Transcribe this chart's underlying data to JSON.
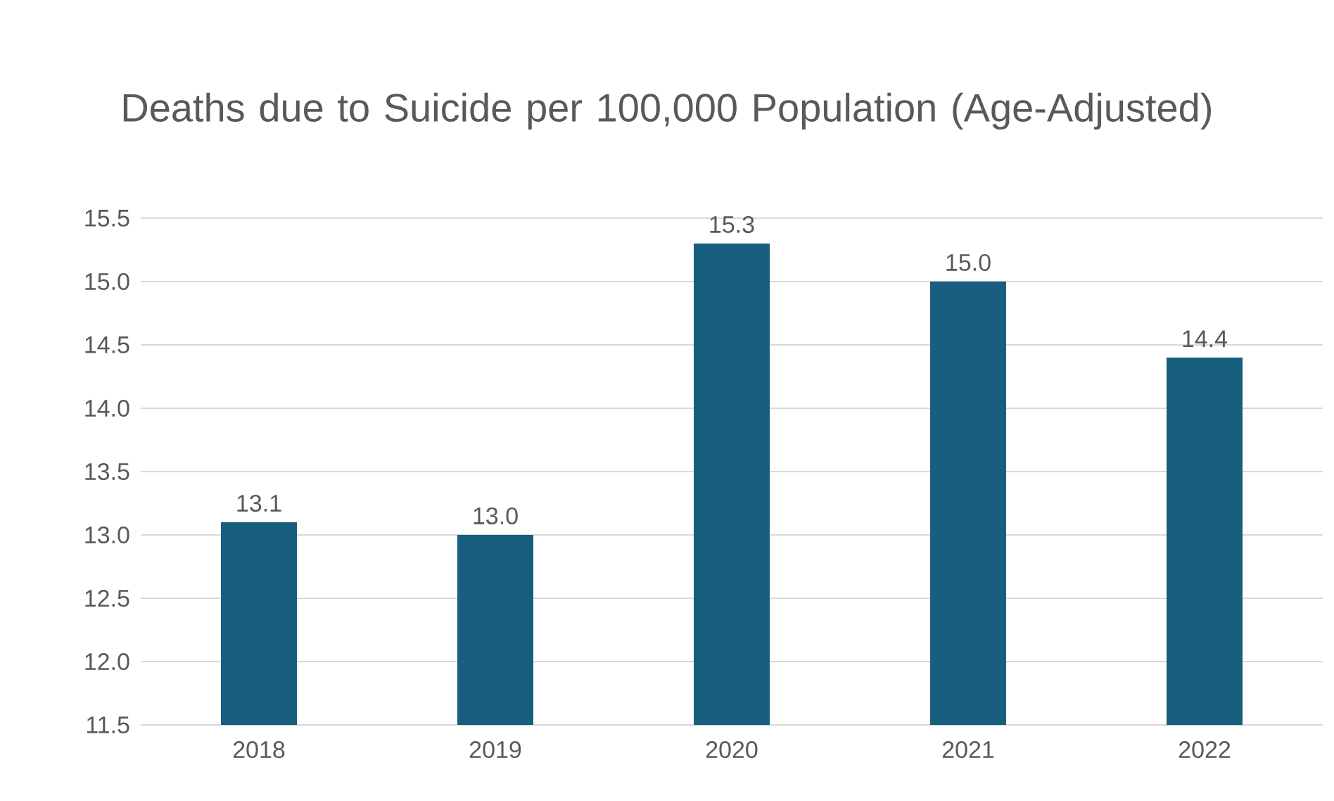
{
  "chart_data": {
    "type": "bar",
    "title": "Deaths due to Suicide per 100,000 Population (Age-Adjusted)",
    "categories": [
      "2018",
      "2019",
      "2020",
      "2021",
      "2022"
    ],
    "values": [
      13.1,
      13.0,
      15.3,
      15.0,
      14.4
    ],
    "value_labels": [
      "13.1",
      "13.0",
      "15.3",
      "15.0",
      "14.4"
    ],
    "color": "#175e7f",
    "ylim": [
      11.5,
      15.5
    ],
    "yticks": [
      {
        "value": 11.5,
        "label": "11.5"
      },
      {
        "value": 12,
        "label": "12.0"
      },
      {
        "value": 12.5,
        "label": "12.5"
      },
      {
        "value": 13,
        "label": "13.0"
      },
      {
        "value": 13.5,
        "label": "13.5"
      },
      {
        "value": 14,
        "label": "14.0"
      },
      {
        "value": 14.5,
        "label": "14.5"
      },
      {
        "value": 15,
        "label": "15.0"
      },
      {
        "value": 15.5,
        "label": "15.5"
      }
    ],
    "grid": "y"
  }
}
